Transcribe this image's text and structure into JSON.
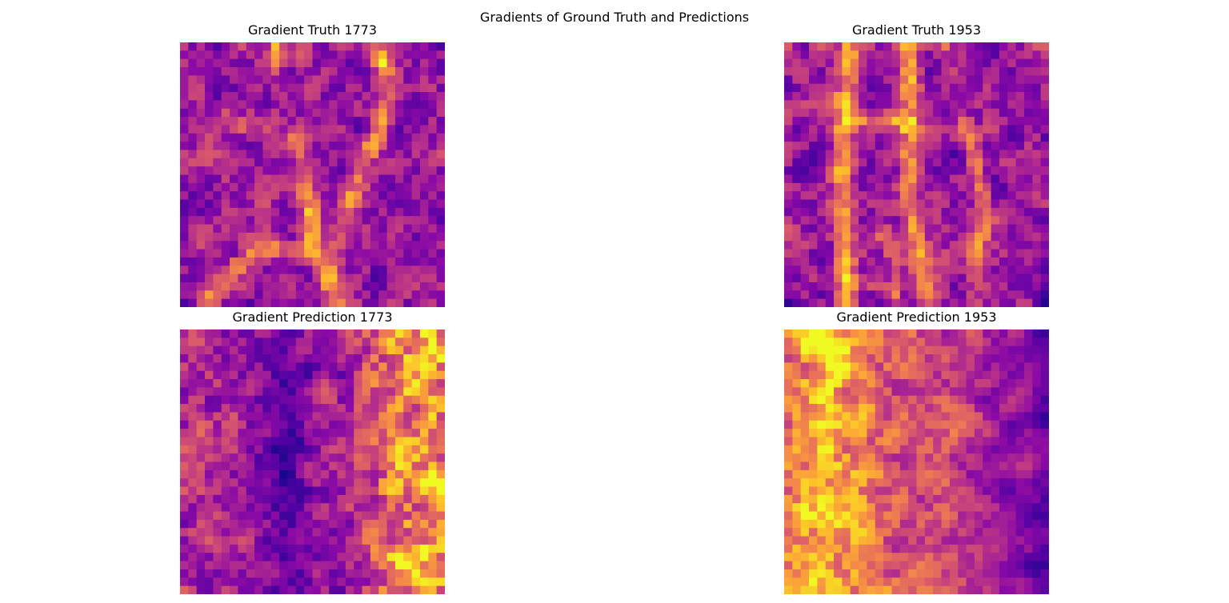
{
  "figure": {
    "suptitle": "Gradients of Ground Truth and Predictions"
  },
  "colormap": {
    "name": "plasma",
    "stops": [
      "#0d0887",
      "#5302a3",
      "#8b0aa5",
      "#b83289",
      "#db5c68",
      "#f48849",
      "#febd2a",
      "#f0f921"
    ]
  },
  "chart_data": [
    {
      "type": "heatmap",
      "title": "Gradient Truth 1773",
      "rows": 32,
      "cols": 32,
      "seed": 1773,
      "base": 0.33,
      "features": [
        {
          "kind": "line",
          "pts": [
            [
              11.5,
              0
            ],
            [
              11.5,
              3
            ]
          ],
          "w": 0.6,
          "a": 0.35
        },
        {
          "kind": "line",
          "pts": [
            [
              24,
              0
            ],
            [
              25,
              5
            ],
            [
              25,
              8
            ],
            [
              24,
              11
            ],
            [
              22,
              15
            ],
            [
              21,
              18
            ],
            [
              20,
              22
            ],
            [
              18,
              26
            ],
            [
              19,
              30
            ],
            [
              20,
              32
            ]
          ],
          "w": 0.9,
          "a": 0.35
        },
        {
          "kind": "line",
          "pts": [
            [
              14,
              12
            ],
            [
              15,
              17
            ],
            [
              16,
              21
            ],
            [
              15,
              25
            ],
            [
              10,
              25
            ],
            [
              7,
              27
            ],
            [
              5,
              29
            ],
            [
              3,
              31
            ]
          ],
          "w": 0.8,
          "a": 0.35
        },
        {
          "kind": "line",
          "pts": [
            [
              16,
              21
            ],
            [
              17,
              27
            ],
            [
              18,
              30
            ]
          ],
          "w": 0.6,
          "a": 0.28
        },
        {
          "kind": "line",
          "pts": [
            [
              5,
              9
            ],
            [
              7,
              10
            ]
          ],
          "w": 0.6,
          "a": 0.25
        },
        {
          "kind": "dot",
          "x": 24.5,
          "y": 2.5,
          "r": 0.7,
          "a": 0.4
        }
      ]
    },
    {
      "type": "heatmap",
      "title": "Gradient Truth 1953",
      "rows": 32,
      "cols": 32,
      "seed": 1953,
      "base": 0.33,
      "features": [
        {
          "kind": "line",
          "pts": [
            [
              8,
              0
            ],
            [
              7.5,
              6
            ],
            [
              7,
              12
            ],
            [
              7,
              20
            ],
            [
              7.5,
              26
            ],
            [
              8,
              32
            ]
          ],
          "w": 0.9,
          "a": 0.42
        },
        {
          "kind": "line",
          "pts": [
            [
              15,
              0
            ],
            [
              15.5,
              8
            ],
            [
              15,
              14
            ],
            [
              15.5,
              20
            ],
            [
              16.5,
              26
            ],
            [
              17,
              30
            ]
          ],
          "w": 0.9,
          "a": 0.4
        },
        {
          "kind": "line",
          "pts": [
            [
              7.5,
              10
            ],
            [
              11,
              9
            ],
            [
              15,
              10
            ]
          ],
          "w": 0.6,
          "a": 0.3
        },
        {
          "kind": "line",
          "pts": [
            [
              22,
              10
            ],
            [
              23,
              14
            ],
            [
              24,
              18
            ],
            [
              24.5,
              22
            ],
            [
              23,
              26
            ]
          ],
          "w": 0.7,
          "a": 0.3
        },
        {
          "kind": "line",
          "pts": [
            [
              12,
              23
            ],
            [
              13.5,
              27
            ],
            [
              13.5,
              31
            ]
          ],
          "w": 0.6,
          "a": 0.32
        },
        {
          "kind": "line",
          "pts": [
            [
              7,
              28
            ],
            [
              10,
              29
            ],
            [
              13,
              30
            ]
          ],
          "w": 0.5,
          "a": 0.25
        },
        {
          "kind": "dot",
          "x": 19.5,
          "y": 0.5,
          "r": 0.6,
          "a": 0.35
        }
      ]
    },
    {
      "type": "heatmap",
      "title": "Gradient Prediction 1773",
      "rows": 32,
      "cols": 32,
      "seed": 2773,
      "base": 0.34,
      "features": [
        {
          "kind": "vband",
          "x": 27,
          "w": 3.2,
          "a": 0.36
        },
        {
          "kind": "vband",
          "x": 31,
          "w": 1.4,
          "a": 0.26
        },
        {
          "kind": "vband",
          "x": 13,
          "w": 2.0,
          "a": -0.18
        },
        {
          "kind": "vband",
          "x": 2,
          "w": 2.0,
          "a": 0.06
        },
        {
          "kind": "dot",
          "x": 29.5,
          "y": 3.5,
          "r": 1.2,
          "a": 0.3
        },
        {
          "kind": "dot",
          "x": 31.5,
          "y": 18.5,
          "r": 1.0,
          "a": 0.35
        },
        {
          "kind": "dot",
          "x": 27.5,
          "y": 27.5,
          "r": 1.3,
          "a": 0.25
        }
      ]
    },
    {
      "type": "heatmap",
      "title": "Gradient Prediction 1953",
      "rows": 32,
      "cols": 32,
      "seed": 3953,
      "base": 0.52,
      "features": [
        {
          "kind": "vband",
          "x": 6,
          "w": 4.0,
          "a": 0.22
        },
        {
          "kind": "vband",
          "x": 3,
          "w": 1.5,
          "a": 0.1
        },
        {
          "kind": "vband",
          "x": 28.5,
          "w": 4.0,
          "a": -0.22
        },
        {
          "kind": "vband",
          "x": 31.5,
          "w": 1.0,
          "a": -0.15
        },
        {
          "kind": "dot",
          "x": 4.5,
          "y": 1.5,
          "r": 1.4,
          "a": 0.32
        },
        {
          "kind": "dot",
          "x": 7,
          "y": 4.5,
          "r": 1.6,
          "a": 0.28
        },
        {
          "kind": "dot",
          "x": 4,
          "y": 28,
          "r": 1.5,
          "a": 0.15
        }
      ]
    }
  ]
}
